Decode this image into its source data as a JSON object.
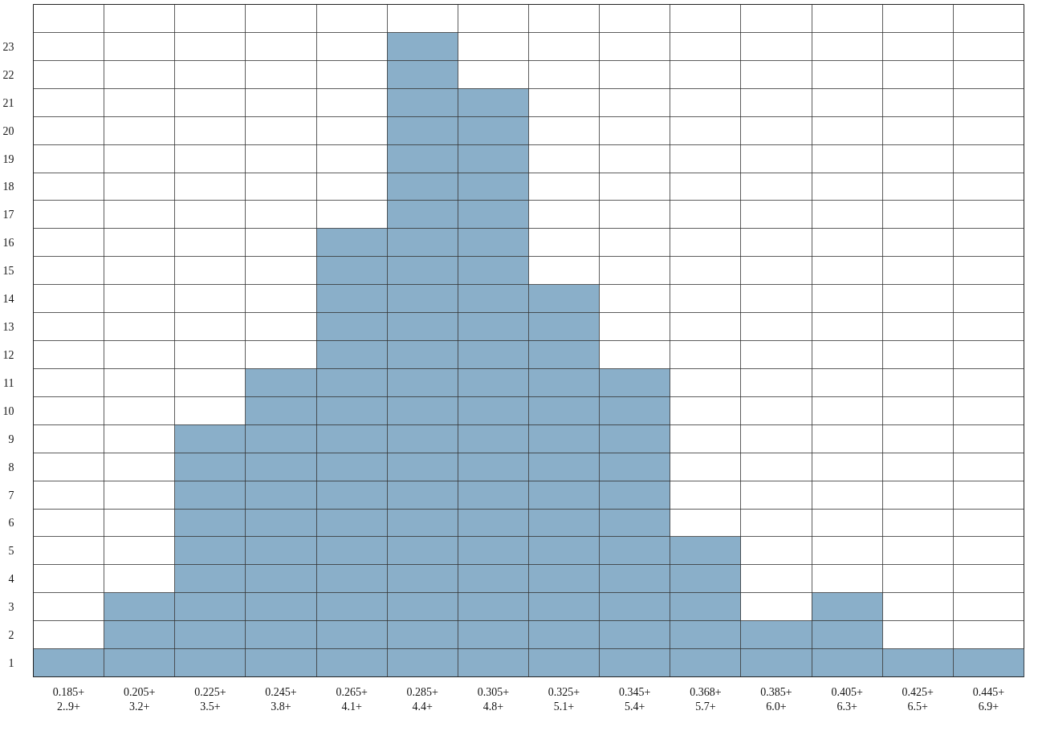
{
  "chart_data": {
    "type": "bar",
    "categories": [
      "0.185+\n2..9+",
      "0.205+\n3.2+",
      "0.225+\n3.5+",
      "0.245+\n3.8+",
      "0.265+\n4.1+",
      "0.285+\n4.4+",
      "0.305+\n4.8+",
      "0.325+\n5.1+",
      "0.345+\n5.4+",
      "0.368+\n5.7+",
      "0.385+\n6.0+",
      "0.405+\n6.3+",
      "0.425+\n6.5+",
      "0.445+\n6.9+"
    ],
    "values": [
      1,
      3,
      9,
      11,
      16,
      23,
      21,
      14,
      11,
      5,
      2,
      3,
      1,
      1
    ],
    "color": "#8aafc9",
    "ylim": [
      0,
      24
    ],
    "yticks": [
      {
        "value": 0.5,
        "label": "1"
      },
      {
        "value": 1.5,
        "label": "2"
      },
      {
        "value": 2.5,
        "label": "3"
      },
      {
        "value": 3.5,
        "label": "4"
      },
      {
        "value": 4.5,
        "label": "5"
      },
      {
        "value": 5.5,
        "label": "6"
      },
      {
        "value": 6.5,
        "label": "7"
      },
      {
        "value": 7.5,
        "label": "8"
      },
      {
        "value": 8.5,
        "label": "9"
      },
      {
        "value": 9.5,
        "label": "10"
      },
      {
        "value": 10.5,
        "label": "11"
      },
      {
        "value": 11.5,
        "label": "12"
      },
      {
        "value": 12.5,
        "label": "13"
      },
      {
        "value": 13.5,
        "label": "14"
      },
      {
        "value": 14.5,
        "label": "15"
      },
      {
        "value": 15.5,
        "label": "16"
      },
      {
        "value": 16.5,
        "label": "17"
      },
      {
        "value": 17.5,
        "label": "18"
      },
      {
        "value": 18.5,
        "label": "19"
      },
      {
        "value": 19.5,
        "label": "20"
      },
      {
        "value": 20.5,
        "label": "21"
      },
      {
        "value": 21.5,
        "label": "22"
      },
      {
        "value": 22.5,
        "label": "23"
      }
    ],
    "grid": true
  }
}
